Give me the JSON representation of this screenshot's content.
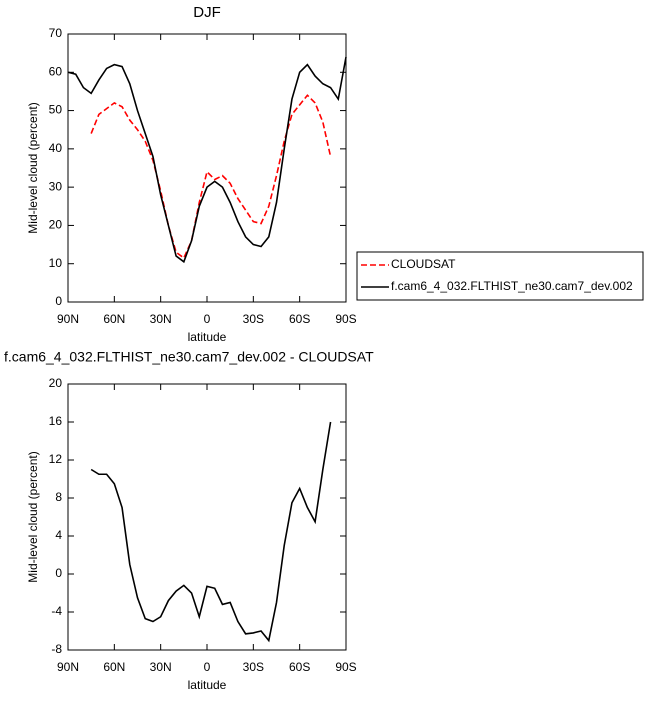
{
  "chart_data": [
    {
      "type": "line",
      "title": "DJF",
      "x_label": "latitude",
      "y_label": "Mid-level cloud (percent)",
      "x": [
        90,
        85,
        80,
        75,
        70,
        65,
        60,
        55,
        50,
        45,
        40,
        35,
        30,
        25,
        20,
        15,
        10,
        5,
        0,
        -5,
        -10,
        -15,
        -20,
        -25,
        -30,
        -35,
        -40,
        -45,
        -50,
        -55,
        -60,
        -65,
        -70,
        -75,
        -80,
        -85,
        -90
      ],
      "series": [
        {
          "name": "CLOUDSAT",
          "color": "#ff0000",
          "line_style": "dashed",
          "values": [
            null,
            null,
            null,
            44,
            49,
            50.5,
            52,
            51,
            47.5,
            45,
            42,
            37,
            29,
            20,
            13,
            11.5,
            16,
            26,
            34,
            32,
            33,
            31,
            27,
            24,
            21,
            20.5,
            25,
            33,
            42,
            49,
            51.5,
            54,
            52,
            47,
            38,
            null,
            null
          ]
        },
        {
          "name": "f.cam6_4_032.FLTHIST_ne30.cam7_dev.002",
          "color": "#000000",
          "line_style": "solid",
          "values": [
            60,
            59.5,
            56,
            54.5,
            58,
            61,
            62,
            61.5,
            57,
            50,
            44,
            38,
            28,
            20,
            12,
            10.5,
            16,
            25,
            30,
            31.5,
            30,
            26,
            21,
            17,
            15,
            14.5,
            17,
            26,
            40,
            53,
            60,
            62,
            59,
            57,
            56,
            53,
            64
          ]
        }
      ],
      "xlim": [
        90,
        -90
      ],
      "xticks": [
        {
          "value": 90,
          "label": "90N"
        },
        {
          "value": 60,
          "label": "60N"
        },
        {
          "value": 30,
          "label": "30N"
        },
        0,
        {
          "value": -30,
          "label": "30S"
        },
        {
          "value": -60,
          "label": "60S"
        },
        {
          "value": -90,
          "label": "90S"
        }
      ],
      "ylim": [
        0,
        70
      ],
      "yticks": [
        0,
        10,
        20,
        30,
        40,
        50,
        60,
        70
      ],
      "legend": "right"
    },
    {
      "type": "line",
      "title": "f.cam6_4_032.FLTHIST_ne30.cam7_dev.002 - CLOUDSAT",
      "x_label": "latitude",
      "y_label": "Mid-level cloud (percent)",
      "x": [
        90,
        85,
        80,
        75,
        70,
        65,
        60,
        55,
        50,
        45,
        40,
        35,
        30,
        25,
        20,
        15,
        10,
        5,
        0,
        -5,
        -10,
        -15,
        -20,
        -25,
        -30,
        -35,
        -40,
        -45,
        -50,
        -55,
        -60,
        -65,
        -70,
        -75,
        -80,
        -85,
        -90
      ],
      "values": [
        null,
        null,
        null,
        11,
        10.5,
        10.5,
        9.5,
        7,
        1,
        -2.5,
        -4.7,
        -5,
        -4.5,
        -2.8,
        -1.8,
        -1.2,
        -2,
        -4.5,
        -1.3,
        -1.5,
        -3.2,
        -3,
        -5,
        -6.3,
        -6.2,
        -6,
        -7,
        -3,
        3,
        7.5,
        9,
        7,
        5.5,
        11,
        16,
        null,
        null
      ],
      "color": "#000000",
      "xlim": [
        90,
        -90
      ],
      "xticks": [
        {
          "value": 90,
          "label": "90N"
        },
        {
          "value": 60,
          "label": "60N"
        },
        {
          "value": 30,
          "label": "30N"
        },
        0,
        {
          "value": -30,
          "label": "30S"
        },
        {
          "value": -60,
          "label": "60S"
        },
        {
          "value": -90,
          "label": "90S"
        }
      ],
      "ylim": [
        -8,
        20
      ],
      "yticks": [
        -8,
        -4,
        0,
        4,
        8,
        12,
        16,
        20
      ]
    }
  ]
}
